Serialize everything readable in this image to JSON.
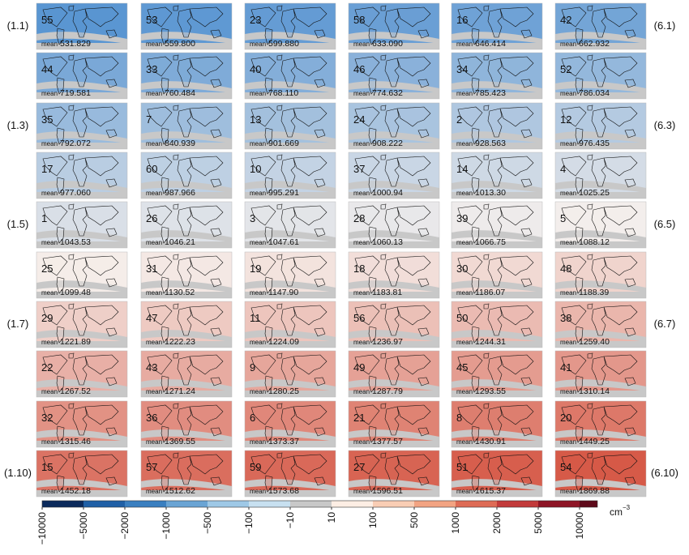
{
  "panels": [
    {
      "id": "55",
      "mean": "531.829"
    },
    {
      "id": "53",
      "mean": "559.800"
    },
    {
      "id": "23",
      "mean": "599.880"
    },
    {
      "id": "58",
      "mean": "633.090"
    },
    {
      "id": "16",
      "mean": "646.414"
    },
    {
      "id": "42",
      "mean": "662.932"
    },
    {
      "id": "44",
      "mean": "719.581"
    },
    {
      "id": "33",
      "mean": "760.484"
    },
    {
      "id": "40",
      "mean": "768.110"
    },
    {
      "id": "46",
      "mean": "774.632"
    },
    {
      "id": "34",
      "mean": "785.423"
    },
    {
      "id": "52",
      "mean": "786.034"
    },
    {
      "id": "35",
      "mean": "792.072"
    },
    {
      "id": "7",
      "mean": "840.939"
    },
    {
      "id": "13",
      "mean": "901.669"
    },
    {
      "id": "24",
      "mean": "908.222"
    },
    {
      "id": "2",
      "mean": "928.563"
    },
    {
      "id": "12",
      "mean": "976.435"
    },
    {
      "id": "17",
      "mean": "977.060"
    },
    {
      "id": "60",
      "mean": "987.966"
    },
    {
      "id": "10",
      "mean": "995.291"
    },
    {
      "id": "37",
      "mean": "1000.94"
    },
    {
      "id": "14",
      "mean": "1013.30"
    },
    {
      "id": "4",
      "mean": "1025.25"
    },
    {
      "id": "1",
      "mean": "1043.53"
    },
    {
      "id": "26",
      "mean": "1046.21"
    },
    {
      "id": "3",
      "mean": "1047.61"
    },
    {
      "id": "28",
      "mean": "1060.13"
    },
    {
      "id": "39",
      "mean": "1066.75"
    },
    {
      "id": "5",
      "mean": "1088.12"
    },
    {
      "id": "25",
      "mean": "1099.48"
    },
    {
      "id": "31",
      "mean": "1130.52"
    },
    {
      "id": "19",
      "mean": "1147.90"
    },
    {
      "id": "18",
      "mean": "1183.81"
    },
    {
      "id": "30",
      "mean": "1186.07"
    },
    {
      "id": "48",
      "mean": "1188.39"
    },
    {
      "id": "29",
      "mean": "1221.89"
    },
    {
      "id": "47",
      "mean": "1222.23"
    },
    {
      "id": "11",
      "mean": "1224.09"
    },
    {
      "id": "56",
      "mean": "1236.97"
    },
    {
      "id": "50",
      "mean": "1244.31"
    },
    {
      "id": "38",
      "mean": "1259.40"
    },
    {
      "id": "22",
      "mean": "1267.52"
    },
    {
      "id": "43",
      "mean": "1271.24"
    },
    {
      "id": "9",
      "mean": "1280.25"
    },
    {
      "id": "49",
      "mean": "1287.79"
    },
    {
      "id": "45",
      "mean": "1293.55"
    },
    {
      "id": "41",
      "mean": "1310.14"
    },
    {
      "id": "32",
      "mean": "1315.46"
    },
    {
      "id": "36",
      "mean": "1369.55"
    },
    {
      "id": "6",
      "mean": "1373.37"
    },
    {
      "id": "21",
      "mean": "1377.57"
    },
    {
      "id": "8",
      "mean": "1430.91"
    },
    {
      "id": "20",
      "mean": "1449.25"
    },
    {
      "id": "15",
      "mean": "1452.18"
    },
    {
      "id": "57",
      "mean": "1512.62"
    },
    {
      "id": "59",
      "mean": "1573.68"
    },
    {
      "id": "27",
      "mean": "1596.51"
    },
    {
      "id": "51",
      "mean": "1615.37"
    },
    {
      "id": "54",
      "mean": "1869.88"
    }
  ],
  "mean_label": "mean",
  "row_labels_left": [
    "(1.1)",
    "(1.3)",
    "(1.5)",
    "(1.7)",
    "(1.10)"
  ],
  "row_labels_right": [
    "(6.1)",
    "(6.3)",
    "(6.5)",
    "(6.7)",
    "(6.10)"
  ],
  "colorbar": {
    "ticks": [
      "−10000",
      "−5000",
      "−2000",
      "−1000",
      "−500",
      "−100",
      "−10",
      "10",
      "100",
      "500",
      "1000",
      "2000",
      "5000",
      "10000"
    ],
    "colors": [
      "#0b2a5c",
      "#1f5fa6",
      "#3a7fc0",
      "#6aa4d4",
      "#9ec8e6",
      "#c7e0f0",
      "#c8c8c8",
      "#fdeee4",
      "#f9cdb4",
      "#f2a382",
      "#de6b55",
      "#c23a3a",
      "#8e1425",
      "#5e0a1a"
    ],
    "unit": "cm",
    "unit_exponent": "−3"
  }
}
